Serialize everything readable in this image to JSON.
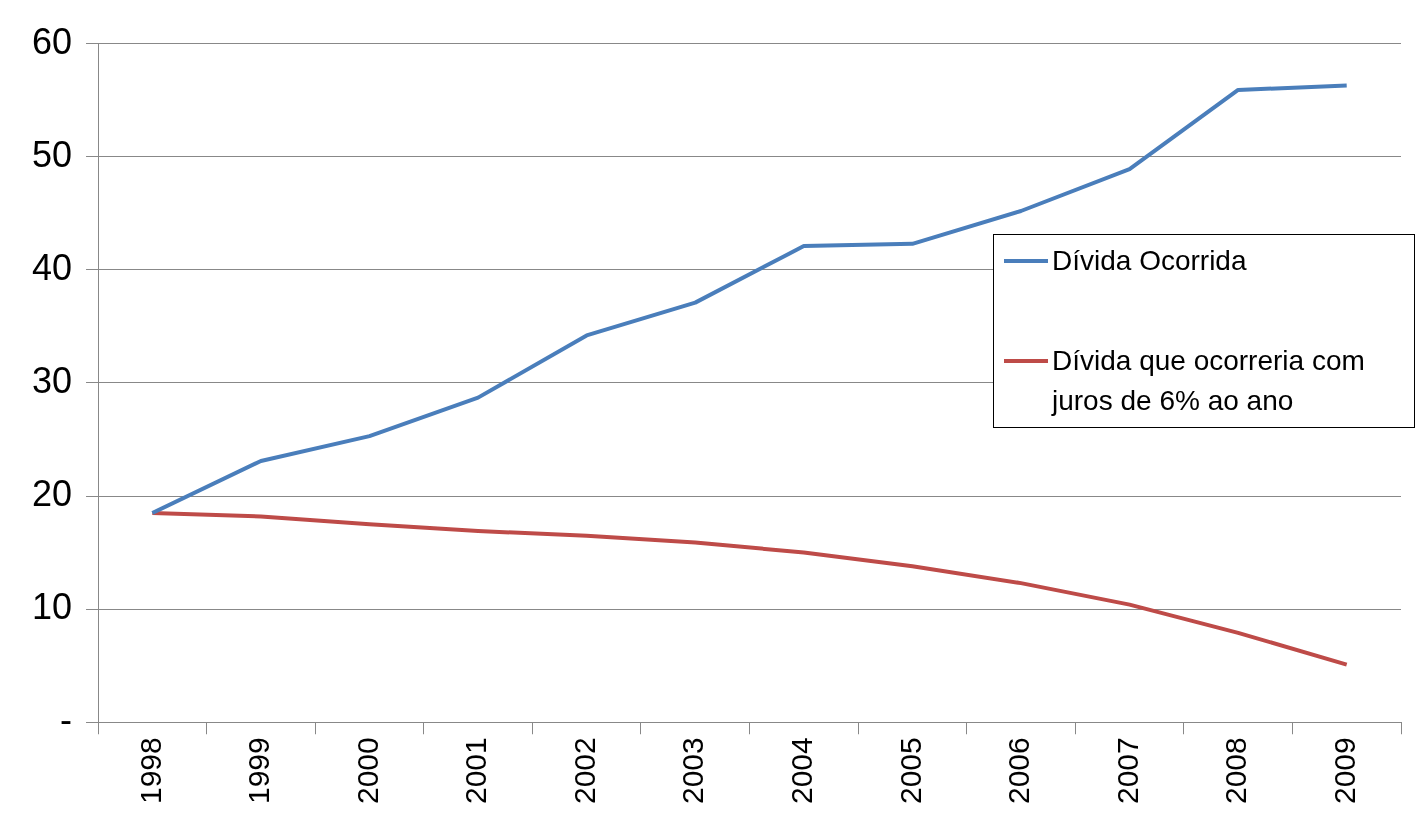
{
  "chart_data": {
    "type": "line",
    "categories": [
      "1998",
      "1999",
      "2000",
      "2001",
      "2002",
      "2003",
      "2004",
      "2005",
      "2006",
      "2007",
      "2008",
      "2009"
    ],
    "series": [
      {
        "name": "Dívida Ocorrida",
        "color": "#4a7ebb",
        "values": [
          18.5,
          23.1,
          25.3,
          28.7,
          34.2,
          37.1,
          42.1,
          42.3,
          45.2,
          48.9,
          55.9,
          56.3
        ]
      },
      {
        "name": "Dívida que ocorreria com juros de 6% ao ano",
        "color": "#be4b48",
        "values": [
          18.5,
          18.2,
          17.5,
          16.9,
          16.5,
          15.9,
          15.0,
          13.8,
          12.3,
          10.4,
          7.9,
          5.1
        ]
      }
    ],
    "ylim": [
      0,
      60
    ],
    "yticks": [
      {
        "value": 0,
        "label": "-"
      },
      10,
      20,
      30,
      40,
      50,
      60
    ],
    "grid": "y",
    "legend": "right",
    "marker": "none",
    "line_style": "solid"
  }
}
